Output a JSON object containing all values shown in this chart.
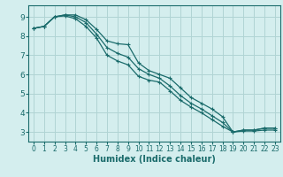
{
  "xlabel": "Humidex (Indice chaleur)",
  "ylabel": "",
  "bg_color": "#d4eeee",
  "grid_color": "#b0d4d4",
  "line_color": "#1a6b6b",
  "xlim": [
    -0.5,
    23.5
  ],
  "ylim": [
    2.5,
    9.6
  ],
  "yticks": [
    3,
    4,
    5,
    6,
    7,
    8,
    9
  ],
  "xticks": [
    0,
    1,
    2,
    3,
    4,
    5,
    6,
    7,
    8,
    9,
    10,
    11,
    12,
    13,
    14,
    15,
    16,
    17,
    18,
    19,
    20,
    21,
    22,
    23
  ],
  "line1_x": [
    0,
    1,
    2,
    3,
    4,
    5,
    6,
    7,
    8,
    9,
    10,
    11,
    12,
    13,
    14,
    15,
    16,
    17,
    18,
    19,
    20,
    21,
    22,
    23
  ],
  "line1_y": [
    8.4,
    8.5,
    9.0,
    9.1,
    9.1,
    8.85,
    8.35,
    7.75,
    7.6,
    7.55,
    6.6,
    6.2,
    6.0,
    5.8,
    5.3,
    4.8,
    4.5,
    4.2,
    3.8,
    3.0,
    3.1,
    3.1,
    3.2,
    3.2
  ],
  "line2_x": [
    0,
    1,
    2,
    3,
    4,
    5,
    6,
    7,
    8,
    9,
    10,
    11,
    12,
    13,
    14,
    15,
    16,
    17,
    18,
    19,
    20,
    21,
    22,
    23
  ],
  "line2_y": [
    8.4,
    8.5,
    9.0,
    9.1,
    9.0,
    8.7,
    8.1,
    7.4,
    7.1,
    6.9,
    6.3,
    6.0,
    5.8,
    5.4,
    4.9,
    4.5,
    4.2,
    3.85,
    3.5,
    3.0,
    3.1,
    3.1,
    3.2,
    3.2
  ],
  "line3_x": [
    0,
    1,
    2,
    3,
    4,
    5,
    6,
    7,
    8,
    9,
    10,
    11,
    12,
    13,
    14,
    15,
    16,
    17,
    18,
    19,
    20,
    21,
    22,
    23
  ],
  "line3_y": [
    8.4,
    8.5,
    9.0,
    9.05,
    8.9,
    8.5,
    7.9,
    7.0,
    6.7,
    6.5,
    5.9,
    5.7,
    5.6,
    5.15,
    4.65,
    4.3,
    4.0,
    3.65,
    3.3,
    3.0,
    3.05,
    3.05,
    3.1,
    3.1
  ]
}
